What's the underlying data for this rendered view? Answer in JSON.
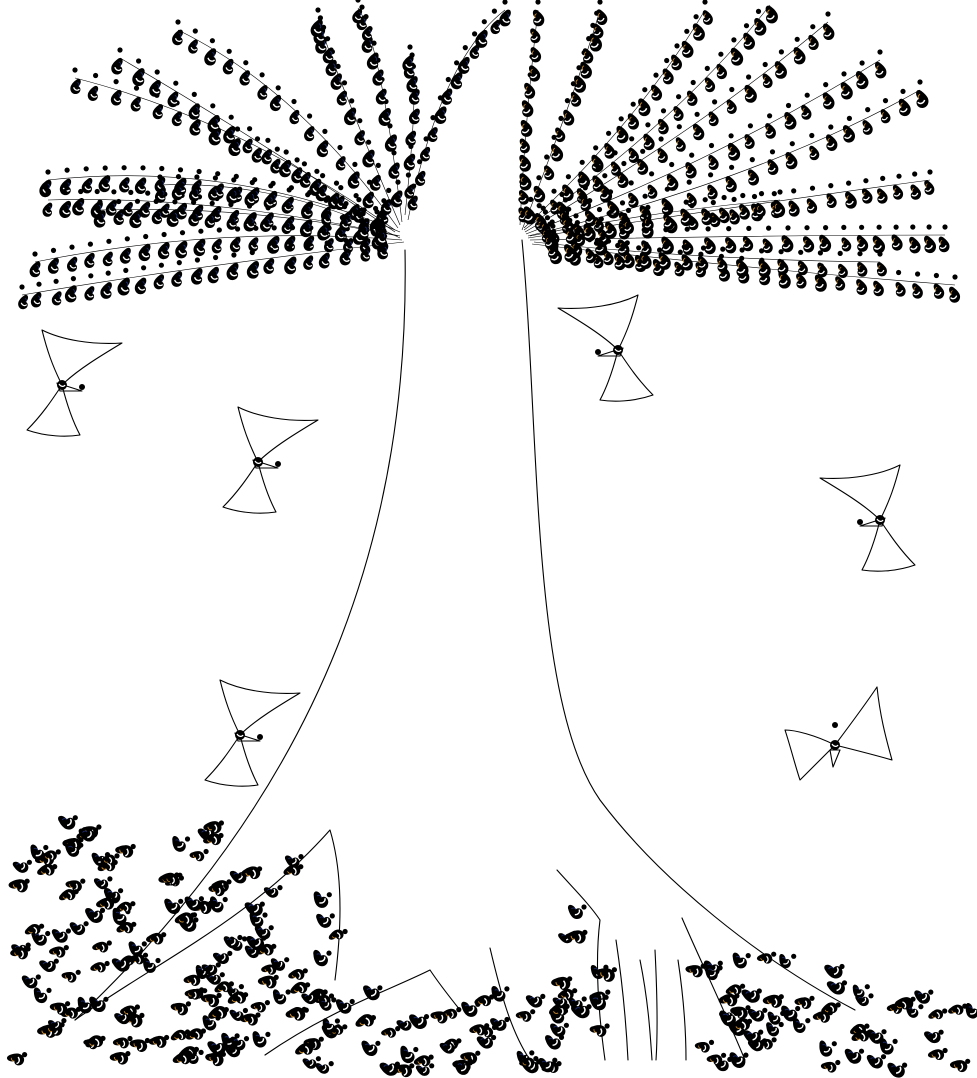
{
  "scene": {
    "subject": "tree-drawing",
    "background_color": "#ffffff",
    "ink_color": "#000000",
    "accent_color": "#1b2a6b",
    "highlight_color": "#c98a2a",
    "butterfly_count": 6
  }
}
